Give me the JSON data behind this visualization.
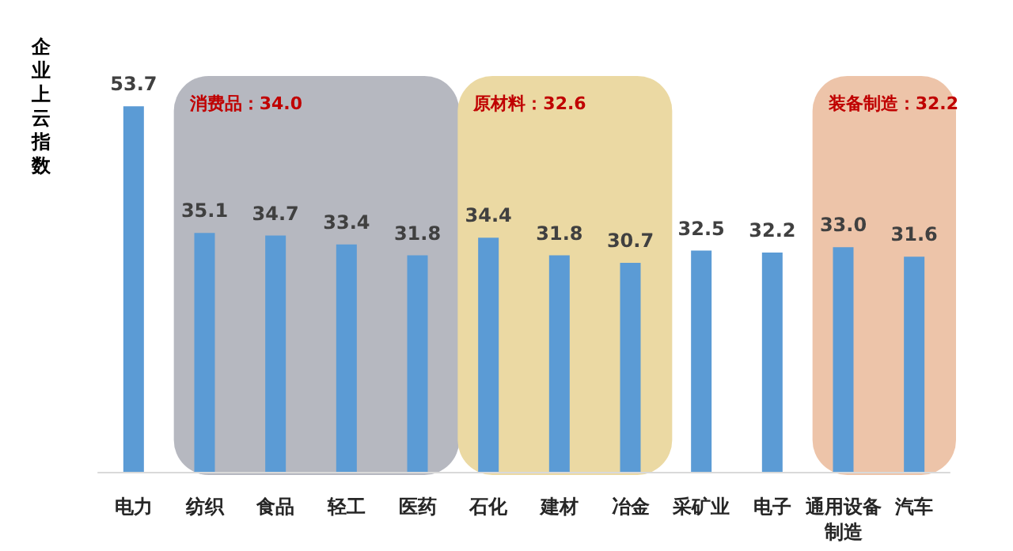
{
  "chart_data": {
    "type": "bar",
    "ylabel": "企业上云指数",
    "categories": [
      "电力",
      "纺织",
      "食品",
      "轻工",
      "医药",
      "石化",
      "建材",
      "冶金",
      "采矿业",
      "电子",
      "通用设备制造",
      "汽车"
    ],
    "values": [
      53.7,
      35.1,
      34.7,
      33.4,
      31.8,
      34.4,
      31.8,
      30.7,
      32.5,
      32.2,
      33.0,
      31.6
    ],
    "color": "#5b9bd5",
    "value_labels": [
      "53.7",
      "35.1",
      "34.7",
      "33.4",
      "31.8",
      "34.4",
      "31.8",
      "30.7",
      "32.5",
      "32.2",
      "33.0",
      "31.6"
    ],
    "bands": [
      {
        "axis": "x",
        "from": "纺织",
        "to": "医药",
        "label": "消费品：34.0",
        "color": "#b6b8c0"
      },
      {
        "axis": "x",
        "from": "石化",
        "to": "冶金",
        "label": "原材料：32.6",
        "color": "#ebd9a3"
      },
      {
        "axis": "x",
        "from": "通用设备制造",
        "to": "汽车",
        "label": "装备制造：32.2",
        "color": "#edc4a9"
      }
    ]
  }
}
